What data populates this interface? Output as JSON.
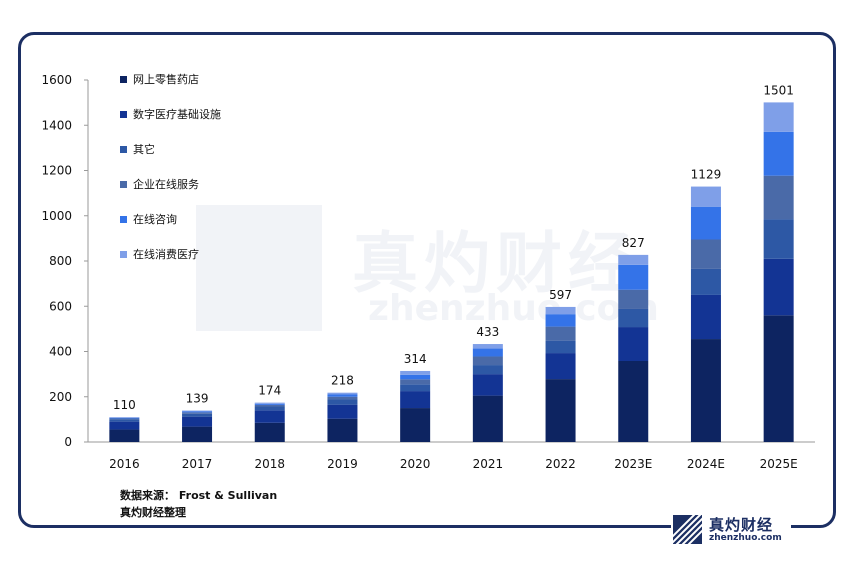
{
  "chart_data": {
    "type": "bar",
    "stacked": true,
    "categories": [
      "2016",
      "2017",
      "2018",
      "2019",
      "2020",
      "2021",
      "2022",
      "2023E",
      "2024E",
      "2025E"
    ],
    "totals": [
      110,
      139,
      174,
      218,
      314,
      433,
      597,
      827,
      1129,
      1501
    ],
    "series": [
      {
        "name": "网上零售药店",
        "color": "#0d2461",
        "values": [
          55,
          68,
          85,
          103,
          150,
          205,
          278,
          358,
          455,
          560
        ]
      },
      {
        "name": "数字医疗基础设施",
        "color": "#133494",
        "values": [
          35,
          44,
          55,
          62,
          75,
          95,
          115,
          150,
          195,
          250
        ]
      },
      {
        "name": "其它",
        "color": "#2d58a5",
        "values": [
          10,
          13,
          17,
          23,
          30,
          40,
          55,
          80,
          115,
          175
        ]
      },
      {
        "name": "企业在线服务",
        "color": "#4a6aa8",
        "values": [
          4,
          6,
          7,
          12,
          22,
          38,
          62,
          85,
          130,
          192
        ]
      },
      {
        "name": "在线咨询",
        "color": "#3473e8",
        "values": [
          3,
          4,
          5,
          10,
          20,
          35,
          55,
          110,
          145,
          194
        ]
      },
      {
        "name": "在线消费医疗",
        "color": "#7f9fe8",
        "values": [
          3,
          4,
          5,
          8,
          17,
          20,
          32,
          44,
          89,
          130
        ]
      }
    ],
    "ylim": [
      0,
      1600
    ],
    "yticks": [
      0,
      200,
      400,
      600,
      800,
      1000,
      1200,
      1400,
      1600
    ],
    "legend_position": "top-left",
    "grid": false
  },
  "source_line": "数据来源： Frost & Sullivan",
  "credit_line": "真灼财经整理",
  "watermark": {
    "cn": "真灼财经",
    "en": "zhenzhuo.com"
  },
  "logo": {
    "name": "真灼财经",
    "url": "zhenzhuo.com"
  }
}
